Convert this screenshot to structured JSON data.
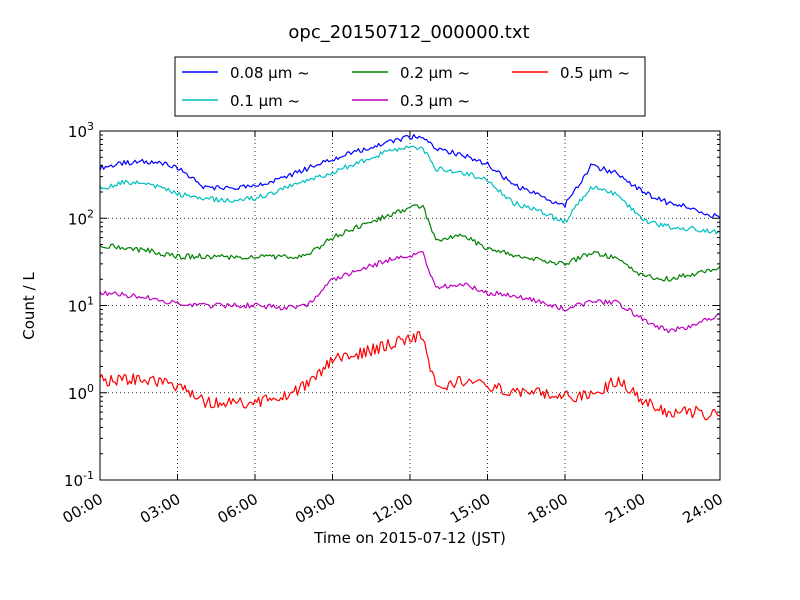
{
  "chart_data": {
    "type": "line",
    "title": "opc_20150712_000000.txt",
    "xlabel": "Time on 2015-07-12 (JST)",
    "ylabel": "Count / L",
    "xlim": [
      "00:00",
      "24:00"
    ],
    "ylim": [
      0.1,
      1000
    ],
    "yscale": "log",
    "grid": true,
    "legend_position": "top-center",
    "x_ticks": [
      "00:00",
      "03:00",
      "06:00",
      "09:00",
      "12:00",
      "15:00",
      "18:00",
      "21:00",
      "24:00"
    ],
    "y_ticks": [
      {
        "value": 0.1,
        "base": "10",
        "exp": "-1"
      },
      {
        "value": 1,
        "base": "10",
        "exp": "0"
      },
      {
        "value": 10,
        "base": "10",
        "exp": "1"
      },
      {
        "value": 100,
        "base": "10",
        "exp": "2"
      },
      {
        "value": 1000,
        "base": "10",
        "exp": "3"
      }
    ],
    "x_hours": [
      0,
      1,
      2,
      3,
      4,
      5,
      6,
      7,
      8,
      9,
      10,
      11,
      12,
      12.5,
      13,
      14,
      15,
      16,
      17,
      18,
      19,
      20,
      21,
      22,
      23,
      24
    ],
    "series": [
      {
        "name": "0.08 μm ~",
        "color": "#0000ff",
        "values": [
          380,
          430,
          450,
          380,
          230,
          220,
          230,
          280,
          370,
          470,
          590,
          720,
          850,
          850,
          630,
          530,
          420,
          240,
          180,
          140,
          400,
          330,
          200,
          150,
          130,
          100
        ]
      },
      {
        "name": "0.1 μm ~",
        "color": "#00bfbf",
        "values": [
          220,
          260,
          240,
          190,
          170,
          160,
          170,
          210,
          270,
          330,
          440,
          560,
          650,
          640,
          370,
          330,
          280,
          150,
          120,
          90,
          230,
          190,
          95,
          80,
          75,
          70
        ]
      },
      {
        "name": "0.2 μm ~",
        "color": "#008000",
        "values": [
          50,
          45,
          42,
          36,
          37,
          36,
          36,
          36,
          37,
          60,
          80,
          105,
          130,
          140,
          55,
          65,
          45,
          38,
          33,
          30,
          40,
          35,
          22,
          20,
          23,
          28
        ]
      },
      {
        "name": "0.3 μm ~",
        "color": "#bf00bf",
        "values": [
          14,
          13,
          12,
          10.5,
          10,
          10,
          10,
          9.5,
          10,
          20,
          25,
          32,
          38,
          40,
          16,
          18,
          14,
          13,
          11,
          9,
          11,
          11,
          7,
          5,
          6,
          8
        ]
      },
      {
        "name": "0.5 μm ~",
        "color": "#ff0000",
        "values": [
          1.4,
          1.4,
          1.4,
          1.2,
          0.8,
          0.75,
          0.75,
          0.9,
          1.2,
          2.4,
          2.8,
          3.4,
          4.2,
          4.5,
          1.1,
          1.4,
          1.2,
          1.0,
          1.0,
          0.9,
          0.9,
          1.4,
          0.8,
          0.6,
          0.6,
          0.55
        ]
      }
    ]
  }
}
